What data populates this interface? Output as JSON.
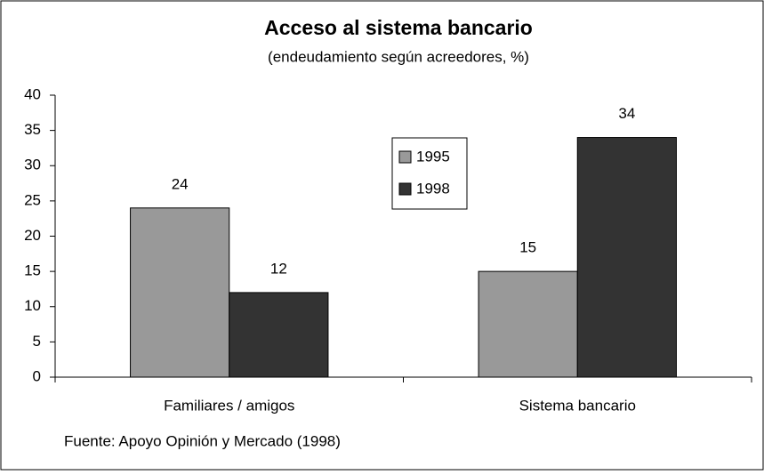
{
  "chart_data": {
    "type": "bar",
    "title": "Acceso al sistema bancario",
    "subtitle": "(endeudamiento según acreedores, %)",
    "categories": [
      "Familiares / amigos",
      "Sistema bancario"
    ],
    "series": [
      {
        "name": "1995",
        "color": "#999999",
        "values": [
          24,
          15
        ]
      },
      {
        "name": "1998",
        "color": "#333333",
        "values": [
          12,
          34
        ]
      }
    ],
    "ylim": [
      0,
      40
    ],
    "yticks": [
      0,
      5,
      10,
      15,
      20,
      25,
      30,
      35,
      40
    ],
    "grid": false,
    "legend": "center",
    "source": "Fuente: Apoyo Opinión y Mercado (1998)"
  }
}
